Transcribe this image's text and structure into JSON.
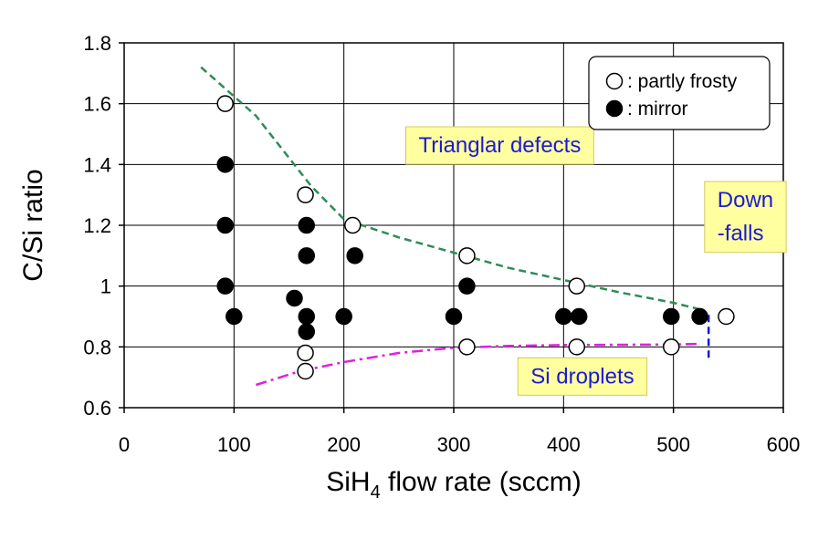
{
  "chart_data": {
    "type": "scatter",
    "xlabel": "SiH",
    "xlabel_sub": "4",
    "xlabel_rest": " flow rate (sccm)",
    "ylabel": "C/Si ratio",
    "xlim": [
      0,
      600
    ],
    "ylim": [
      0.6,
      1.8
    ],
    "xticks": [
      "0",
      "100",
      "200",
      "300",
      "400",
      "500",
      "600"
    ],
    "yticks": [
      "0.6",
      "0.8",
      "1",
      "1.2",
      "1.4",
      "1.6",
      "1.8"
    ],
    "grid": true,
    "legend": {
      "position": "top-right",
      "entries": [
        {
          "label": ": partly frosty",
          "marker": "open-circle"
        },
        {
          "label": ": mirror",
          "marker": "filled-circle"
        }
      ]
    },
    "series": [
      {
        "name": "partly frosty",
        "marker": "open-circle",
        "points": [
          [
            92,
            1.6
          ],
          [
            165,
            1.3
          ],
          [
            208,
            1.2
          ],
          [
            312,
            1.1
          ],
          [
            412,
            1.0
          ],
          [
            548,
            0.9
          ],
          [
            165,
            0.78
          ],
          [
            165,
            0.72
          ],
          [
            312,
            0.8
          ],
          [
            412,
            0.8
          ],
          [
            498,
            0.8
          ]
        ]
      },
      {
        "name": "mirror",
        "marker": "filled-circle",
        "points": [
          [
            92,
            1.4
          ],
          [
            92,
            1.2
          ],
          [
            92,
            1.0
          ],
          [
            100,
            0.9
          ],
          [
            155,
            0.96
          ],
          [
            166,
            1.2
          ],
          [
            166,
            1.1
          ],
          [
            166,
            0.9
          ],
          [
            166,
            0.85
          ],
          [
            200,
            0.9
          ],
          [
            210,
            1.1
          ],
          [
            300,
            0.9
          ],
          [
            312,
            1.0
          ],
          [
            400,
            0.9
          ],
          [
            414,
            0.9
          ],
          [
            498,
            0.9
          ],
          [
            524,
            0.9
          ]
        ]
      }
    ],
    "curves": [
      {
        "name": "triangular-defects-boundary",
        "color": "#2e8b57",
        "style": "dashed",
        "points": [
          [
            70,
            1.72
          ],
          [
            120,
            1.56
          ],
          [
            170,
            1.33
          ],
          [
            200,
            1.22
          ],
          [
            250,
            1.16
          ],
          [
            300,
            1.11
          ],
          [
            350,
            1.06
          ],
          [
            400,
            1.02
          ],
          [
            450,
            0.98
          ],
          [
            500,
            0.945
          ],
          [
            528,
            0.92
          ]
        ]
      },
      {
        "name": "si-droplets-boundary",
        "color": "#e020e0",
        "style": "dash-dot",
        "points": [
          [
            120,
            0.675
          ],
          [
            160,
            0.72
          ],
          [
            200,
            0.75
          ],
          [
            250,
            0.78
          ],
          [
            300,
            0.797
          ],
          [
            350,
            0.803
          ],
          [
            400,
            0.806
          ],
          [
            450,
            0.807
          ],
          [
            500,
            0.808
          ],
          [
            525,
            0.81
          ]
        ]
      },
      {
        "name": "down-falls-boundary",
        "color": "#1a1ad6",
        "style": "dashed",
        "points": [
          [
            532,
            0.905
          ],
          [
            532,
            0.75
          ]
        ]
      }
    ],
    "annotations": [
      {
        "text": "Trianglar defects",
        "x": 268,
        "y": 1.44,
        "box": "#ffffa0"
      },
      {
        "text": "Si droplets",
        "x": 370,
        "y": 0.68,
        "box": "#ffffa0"
      },
      {
        "text": "Down",
        "x": 540,
        "y": 1.26,
        "box": "#ffffa0"
      },
      {
        "text": "-falls",
        "x": 540,
        "y": 1.15,
        "box": ""
      }
    ]
  },
  "colors": {
    "axis": "#000000",
    "grid": "#000000",
    "annotation_text": "#1a1ad6",
    "annotation_box": "#ffffa0",
    "annotation_border": "#d4c860"
  }
}
